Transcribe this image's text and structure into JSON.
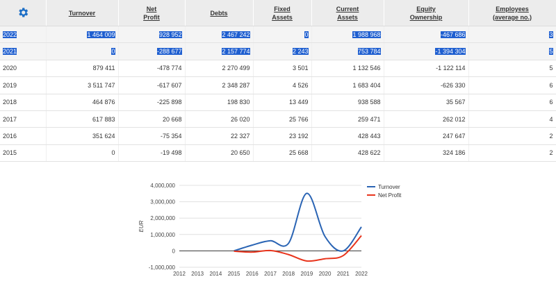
{
  "table": {
    "columns": [
      {
        "lines": [
          "Turnover"
        ]
      },
      {
        "lines": [
          "Net",
          "Profit"
        ]
      },
      {
        "lines": [
          "Debts"
        ]
      },
      {
        "lines": [
          "Fixed",
          "Assets"
        ]
      },
      {
        "lines": [
          "Current",
          "Assets"
        ]
      },
      {
        "lines": [
          "Equity",
          "Ownership"
        ]
      },
      {
        "lines": [
          "Employees",
          "(average no.)"
        ]
      }
    ],
    "rows": [
      {
        "year": "2022",
        "selected": true,
        "cells": [
          "1 464 009",
          "928 952",
          "2 467 242",
          "0",
          "1 988 968",
          "-467 686",
          "3"
        ]
      },
      {
        "year": "2021",
        "selected": true,
        "cells": [
          "0",
          "-288 677",
          "2 157 774",
          "2 243",
          "753 784",
          "-1 394 304",
          "5"
        ]
      },
      {
        "year": "2020",
        "selected": false,
        "cells": [
          "879 411",
          "-478 774",
          "2 270 499",
          "3 501",
          "1 132 546",
          "-1 122 114",
          "5"
        ]
      },
      {
        "year": "2019",
        "selected": false,
        "cells": [
          "3 511 747",
          "-617 607",
          "2 348 287",
          "4 526",
          "1 683 404",
          "-626 330",
          "6"
        ]
      },
      {
        "year": "2018",
        "selected": false,
        "cells": [
          "464 876",
          "-225 898",
          "198 830",
          "13 449",
          "938 588",
          "35 567",
          "6"
        ]
      },
      {
        "year": "2017",
        "selected": false,
        "cells": [
          "617 883",
          "20 668",
          "26 020",
          "25 766",
          "259 471",
          "262 012",
          "4"
        ]
      },
      {
        "year": "2016",
        "selected": false,
        "cells": [
          "351 624",
          "-75 354",
          "22 327",
          "23 192",
          "428 443",
          "247 647",
          "2"
        ]
      },
      {
        "year": "2015",
        "selected": false,
        "cells": [
          "0",
          "-19 498",
          "20 650",
          "25 668",
          "428 622",
          "324 186",
          "2"
        ]
      }
    ]
  },
  "colors": {
    "turnover": "#2a64b4",
    "net_profit": "#e8341c",
    "selection": "#1f5fd0",
    "settings_icon": "#1e6fc6"
  },
  "icons": {
    "settings": "gear-icon"
  },
  "chart_data": {
    "type": "line",
    "x": [
      2012,
      2013,
      2014,
      2015,
      2016,
      2017,
      2018,
      2019,
      2020,
      2021,
      2022
    ],
    "series": [
      {
        "name": "Turnover",
        "color": "#2a64b4",
        "values": [
          null,
          null,
          null,
          0,
          351624,
          617883,
          464876,
          3511747,
          879411,
          0,
          1464009
        ]
      },
      {
        "name": "Net Profit",
        "color": "#e8341c",
        "values": [
          null,
          null,
          null,
          -19498,
          -75354,
          20668,
          -225898,
          -617607,
          -478774,
          -288677,
          928952
        ]
      }
    ],
    "ylabel": "EUR",
    "ylim": [
      -1000000,
      4000000
    ],
    "yticks": [
      -1000000,
      0,
      1000000,
      2000000,
      3000000,
      4000000
    ],
    "ytick_labels": [
      "-1,000,000",
      "0",
      "1,000,000",
      "2,000,000",
      "3,000,000",
      "4,000,000"
    ],
    "xtick_labels": [
      "2012",
      "2013",
      "2014",
      "2015",
      "2016",
      "2017",
      "2018",
      "2019",
      "2020",
      "2021",
      "2022"
    ],
    "grid": true,
    "legend": "right"
  }
}
